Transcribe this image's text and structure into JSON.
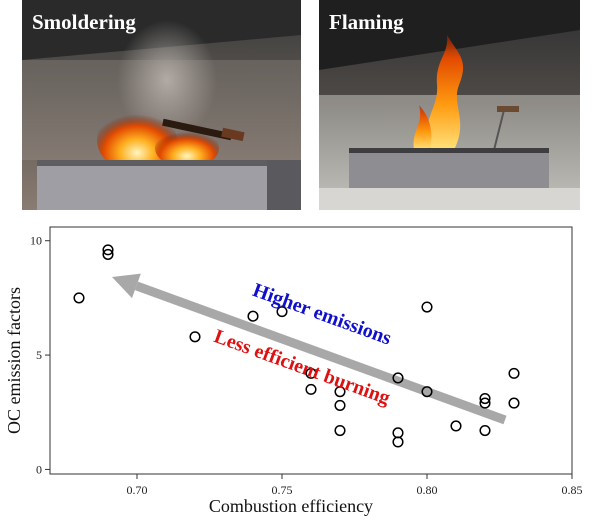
{
  "panels": {
    "left": {
      "label": "Smoldering"
    },
    "right": {
      "label": "Flaming"
    }
  },
  "colors": {
    "point_stroke": "#000000",
    "arrow": "#a8a8a8",
    "higher_emissions": "#1010cc",
    "less_efficient": "#dd1111",
    "plot_border": "#333333"
  },
  "chart_data": {
    "type": "scatter",
    "title": "",
    "xlabel": "Combustion efficiency",
    "ylabel": "OC emission factors",
    "xlim": [
      0.67,
      0.85
    ],
    "ylim": [
      -0.2,
      10.6
    ],
    "xticks": [
      0.7,
      0.75,
      0.8,
      0.85
    ],
    "xtick_labels": [
      "0.70",
      "0.75",
      "0.80",
      "0.85"
    ],
    "yticks": [
      0,
      5,
      10
    ],
    "ytick_labels": [
      "0",
      "5",
      "10"
    ],
    "grid": false,
    "marker": "open-circle",
    "points": [
      {
        "x": 0.68,
        "y": 7.5
      },
      {
        "x": 0.69,
        "y": 9.6
      },
      {
        "x": 0.69,
        "y": 9.4
      },
      {
        "x": 0.72,
        "y": 5.8
      },
      {
        "x": 0.74,
        "y": 6.7
      },
      {
        "x": 0.75,
        "y": 6.9
      },
      {
        "x": 0.76,
        "y": 4.2
      },
      {
        "x": 0.76,
        "y": 3.5
      },
      {
        "x": 0.77,
        "y": 3.4
      },
      {
        "x": 0.77,
        "y": 2.8
      },
      {
        "x": 0.77,
        "y": 1.7
      },
      {
        "x": 0.79,
        "y": 4.0
      },
      {
        "x": 0.79,
        "y": 1.6
      },
      {
        "x": 0.79,
        "y": 1.2
      },
      {
        "x": 0.8,
        "y": 7.1
      },
      {
        "x": 0.8,
        "y": 3.4
      },
      {
        "x": 0.81,
        "y": 1.9
      },
      {
        "x": 0.82,
        "y": 3.1
      },
      {
        "x": 0.82,
        "y": 2.9
      },
      {
        "x": 0.82,
        "y": 1.7
      },
      {
        "x": 0.83,
        "y": 4.2
      },
      {
        "x": 0.83,
        "y": 2.9
      }
    ],
    "annotations": [
      {
        "text": "Higher emissions"
      },
      {
        "text": "Less efficient burning"
      }
    ]
  }
}
